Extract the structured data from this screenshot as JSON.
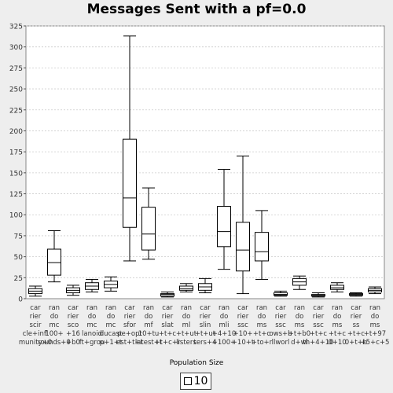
{
  "chart_data": {
    "type": "box",
    "title": "Messages Sent with a pf=0.0",
    "xlabel": "",
    "ylabel": "",
    "ylim": [
      0,
      325
    ],
    "yticks": [
      0,
      25,
      50,
      75,
      100,
      125,
      150,
      175,
      200,
      225,
      250,
      275,
      300,
      325
    ],
    "grid": true,
    "legend": {
      "title": "Population Size",
      "entries": [
        "10"
      ],
      "placement": "bottom"
    },
    "categories": [
      {
        "label_lines": [
          "car",
          "rier",
          "scir",
          "cle+infl",
          "munity+0"
        ]
      },
      {
        "label_lines": [
          "ran",
          "do",
          "mc",
          "100+",
          "rounds+0"
        ]
      },
      {
        "label_lines": [
          "car",
          "rier",
          "sco",
          "+16",
          "+b0"
        ]
      },
      {
        "label_lines": [
          "ran",
          "do",
          "mc",
          "lanoid",
          "ft+grou"
        ]
      },
      {
        "label_lines": [
          "ran",
          "do",
          "mc",
          "ducast",
          "p+1+t"
        ]
      },
      {
        "label_lines": [
          "car",
          "rier",
          "sfor",
          "pe+opt",
          "est+t+t"
        ]
      },
      {
        "label_lines": [
          "ran",
          "do",
          "mf",
          "10+tu",
          "latest+t"
        ]
      },
      {
        "label_lines": [
          "car",
          "rier",
          "slat",
          "+t+c",
          "+t+c+r"
        ]
      },
      {
        "label_lines": [
          "ran",
          "do",
          "ml",
          "+t+ut",
          "listers"
        ]
      },
      {
        "label_lines": [
          "car",
          "rier",
          "slin",
          "+t+ut",
          "ters+4"
        ]
      },
      {
        "label_lines": [
          "ran",
          "do",
          "mli",
          "+4+10",
          "+100+"
        ]
      },
      {
        "label_lines": [
          "car",
          "rier",
          "ssc",
          "+10+",
          "+10+t"
        ]
      },
      {
        "label_lines": [
          "ran",
          "do",
          "ms",
          "+t+c",
          "+to+r"
        ]
      },
      {
        "label_lines": [
          "car",
          "rier",
          "ssc",
          "ows+b",
          "llworl"
        ]
      },
      {
        "label_lines": [
          "ran",
          "do",
          "ms",
          "+t+b0",
          "d+wi"
        ]
      },
      {
        "label_lines": [
          "car",
          "rier",
          "ssc",
          "+t+c",
          "th+4+10"
        ]
      },
      {
        "label_lines": [
          "ran",
          "do",
          "ms",
          "+t+c",
          "0+10"
        ]
      },
      {
        "label_lines": [
          "car",
          "rier",
          "ss",
          "+t+c",
          "0+t+b"
        ]
      },
      {
        "label_lines": [
          "ran",
          "do",
          "ms",
          "+t+97",
          "+5+c+5"
        ]
      }
    ],
    "series": [
      {
        "name": "10",
        "boxes": [
          {
            "min": 3,
            "q1": 6,
            "median": 9,
            "q3": 12,
            "max": 15
          },
          {
            "min": 20,
            "q1": 28,
            "median": 43,
            "q3": 59,
            "max": 81
          },
          {
            "min": 4,
            "q1": 7,
            "median": 10,
            "q3": 13,
            "max": 16
          },
          {
            "min": 8,
            "q1": 11,
            "median": 15,
            "q3": 19,
            "max": 23
          },
          {
            "min": 9,
            "q1": 13,
            "median": 17,
            "q3": 21,
            "max": 26
          },
          {
            "min": 45,
            "q1": 85,
            "median": 120,
            "q3": 190,
            "max": 313
          },
          {
            "min": 47,
            "q1": 58,
            "median": 77,
            "q3": 109,
            "max": 132
          },
          {
            "min": 2,
            "q1": 3,
            "median": 5,
            "q3": 6,
            "max": 8
          },
          {
            "min": 8,
            "q1": 10,
            "median": 12,
            "q3": 15,
            "max": 18
          },
          {
            "min": 7,
            "q1": 10,
            "median": 14,
            "q3": 18,
            "max": 24
          },
          {
            "min": 35,
            "q1": 62,
            "median": 80,
            "q3": 110,
            "max": 154
          },
          {
            "min": 6,
            "q1": 33,
            "median": 58,
            "q3": 91,
            "max": 170
          },
          {
            "min": 23,
            "q1": 45,
            "median": 56,
            "q3": 79,
            "max": 105
          },
          {
            "min": 3,
            "q1": 4,
            "median": 5,
            "q3": 7,
            "max": 9
          },
          {
            "min": 11,
            "q1": 16,
            "median": 20,
            "q3": 24,
            "max": 27
          },
          {
            "min": 2,
            "q1": 3,
            "median": 4,
            "q3": 5,
            "max": 7
          },
          {
            "min": 8,
            "q1": 11,
            "median": 13,
            "q3": 16,
            "max": 19
          },
          {
            "min": 3,
            "q1": 4,
            "median": 5,
            "q3": 6,
            "max": 7
          },
          {
            "min": 6,
            "q1": 8,
            "median": 10,
            "q3": 12,
            "max": 14
          }
        ]
      }
    ]
  }
}
